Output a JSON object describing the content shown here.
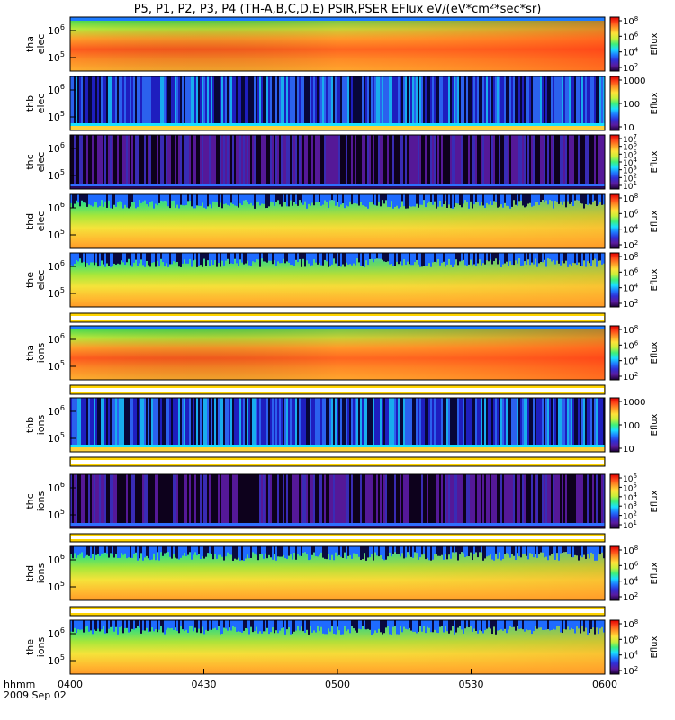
{
  "chart_data": {
    "type": "heatmap",
    "title": "P5, P1, P2, P3, P4 (TH-A,B,C,D,E) PSIR,PSER EFlux eV/(eV*cm²*sec*sr)",
    "x_label_line1": "hhmm",
    "x_label_line2": "2009 Sep 02",
    "x_ticks": [
      "0400",
      "0430",
      "0500",
      "0530",
      "0600"
    ],
    "x_range": [
      "0400",
      "0600"
    ],
    "colorbar_label": "Eflux",
    "panels": [
      {
        "probe": "tha",
        "species": "elec",
        "kind": "hot",
        "y_ticks": [
          {
            "base": "10",
            "exp": "6"
          },
          {
            "base": "10",
            "exp": "5"
          }
        ],
        "cbar_ticks": [
          {
            "base": "10",
            "exp": "8"
          },
          {
            "base": "10",
            "exp": "6"
          },
          {
            "base": "10",
            "exp": "4"
          },
          {
            "base": "10",
            "exp": "2"
          }
        ],
        "cbar_range": "100 - 1e8"
      },
      {
        "probe": "thb",
        "species": "elec",
        "kind": "noise",
        "y_ticks": [
          {
            "base": "10",
            "exp": "6"
          },
          {
            "base": "10",
            "exp": "5"
          }
        ],
        "cbar_ticks": [
          {
            "base": "1000",
            "exp": ""
          },
          {
            "base": "100",
            "exp": ""
          },
          {
            "base": "10",
            "exp": ""
          }
        ],
        "cbar_range": "10 - 1000"
      },
      {
        "probe": "thc",
        "species": "elec",
        "kind": "dark",
        "y_ticks": [
          {
            "base": "10",
            "exp": "6"
          },
          {
            "base": "10",
            "exp": "5"
          }
        ],
        "cbar_ticks": [
          {
            "base": "10",
            "exp": "7"
          },
          {
            "base": "10",
            "exp": "6"
          },
          {
            "base": "10",
            "exp": "5"
          },
          {
            "base": "10",
            "exp": "4"
          },
          {
            "base": "10",
            "exp": "3"
          },
          {
            "base": "10",
            "exp": "2"
          },
          {
            "base": "10",
            "exp": "1"
          }
        ],
        "cbar_range": "10 - 1e7"
      },
      {
        "probe": "thd",
        "species": "elec",
        "kind": "band",
        "y_ticks": [
          {
            "base": "10",
            "exp": "6"
          },
          {
            "base": "10",
            "exp": "5"
          }
        ],
        "cbar_ticks": [
          {
            "base": "10",
            "exp": "8"
          },
          {
            "base": "10",
            "exp": "6"
          },
          {
            "base": "10",
            "exp": "4"
          },
          {
            "base": "10",
            "exp": "2"
          }
        ],
        "cbar_range": "100 - 1e8"
      },
      {
        "probe": "the",
        "species": "elec",
        "kind": "band",
        "y_ticks": [
          {
            "base": "10",
            "exp": "6"
          },
          {
            "base": "10",
            "exp": "5"
          }
        ],
        "cbar_ticks": [
          {
            "base": "10",
            "exp": "8"
          },
          {
            "base": "10",
            "exp": "6"
          },
          {
            "base": "10",
            "exp": "4"
          },
          {
            "base": "10",
            "exp": "2"
          }
        ],
        "cbar_range": "100 - 1e8"
      },
      {
        "probe": "tha",
        "species": "ions",
        "kind": "hot",
        "y_ticks": [
          {
            "base": "10",
            "exp": "6"
          },
          {
            "base": "10",
            "exp": "5"
          }
        ],
        "cbar_ticks": [
          {
            "base": "10",
            "exp": "8"
          },
          {
            "base": "10",
            "exp": "6"
          },
          {
            "base": "10",
            "exp": "4"
          },
          {
            "base": "10",
            "exp": "2"
          }
        ],
        "cbar_range": "100 - 1e8"
      },
      {
        "probe": "thb",
        "species": "ions",
        "kind": "noise",
        "y_ticks": [
          {
            "base": "10",
            "exp": "6"
          },
          {
            "base": "10",
            "exp": "5"
          }
        ],
        "cbar_ticks": [
          {
            "base": "1000",
            "exp": ""
          },
          {
            "base": "100",
            "exp": ""
          },
          {
            "base": "10",
            "exp": ""
          }
        ],
        "cbar_range": "10 - 1000"
      },
      {
        "probe": "thc",
        "species": "ions",
        "kind": "dark",
        "y_ticks": [
          {
            "base": "10",
            "exp": "6"
          },
          {
            "base": "10",
            "exp": "5"
          }
        ],
        "cbar_ticks": [
          {
            "base": "10",
            "exp": "6"
          },
          {
            "base": "10",
            "exp": "5"
          },
          {
            "base": "10",
            "exp": "4"
          },
          {
            "base": "10",
            "exp": "3"
          },
          {
            "base": "10",
            "exp": "2"
          },
          {
            "base": "10",
            "exp": "1"
          }
        ],
        "cbar_range": "10 - 1e6"
      },
      {
        "probe": "thd",
        "species": "ions",
        "kind": "band",
        "y_ticks": [
          {
            "base": "10",
            "exp": "6"
          },
          {
            "base": "10",
            "exp": "5"
          }
        ],
        "cbar_ticks": [
          {
            "base": "10",
            "exp": "8"
          },
          {
            "base": "10",
            "exp": "6"
          },
          {
            "base": "10",
            "exp": "4"
          },
          {
            "base": "10",
            "exp": "2"
          }
        ],
        "cbar_range": "100 - 1e8"
      },
      {
        "probe": "the",
        "species": "ions",
        "kind": "band",
        "y_ticks": [
          {
            "base": "10",
            "exp": "6"
          },
          {
            "base": "10",
            "exp": "5"
          }
        ],
        "cbar_ticks": [
          {
            "base": "10",
            "exp": "8"
          },
          {
            "base": "10",
            "exp": "6"
          },
          {
            "base": "10",
            "exp": "4"
          },
          {
            "base": "10",
            "exp": "2"
          }
        ],
        "cbar_range": "100 - 1e8"
      }
    ],
    "separator_bars": 5,
    "colormap": [
      "#1a0033",
      "#5a1a9e",
      "#2f2fd6",
      "#1e7bff",
      "#19e0ff",
      "#3ef07a",
      "#c8f03a",
      "#ffe23a",
      "#ff9a28",
      "#ff4a1a",
      "#e00000"
    ]
  }
}
